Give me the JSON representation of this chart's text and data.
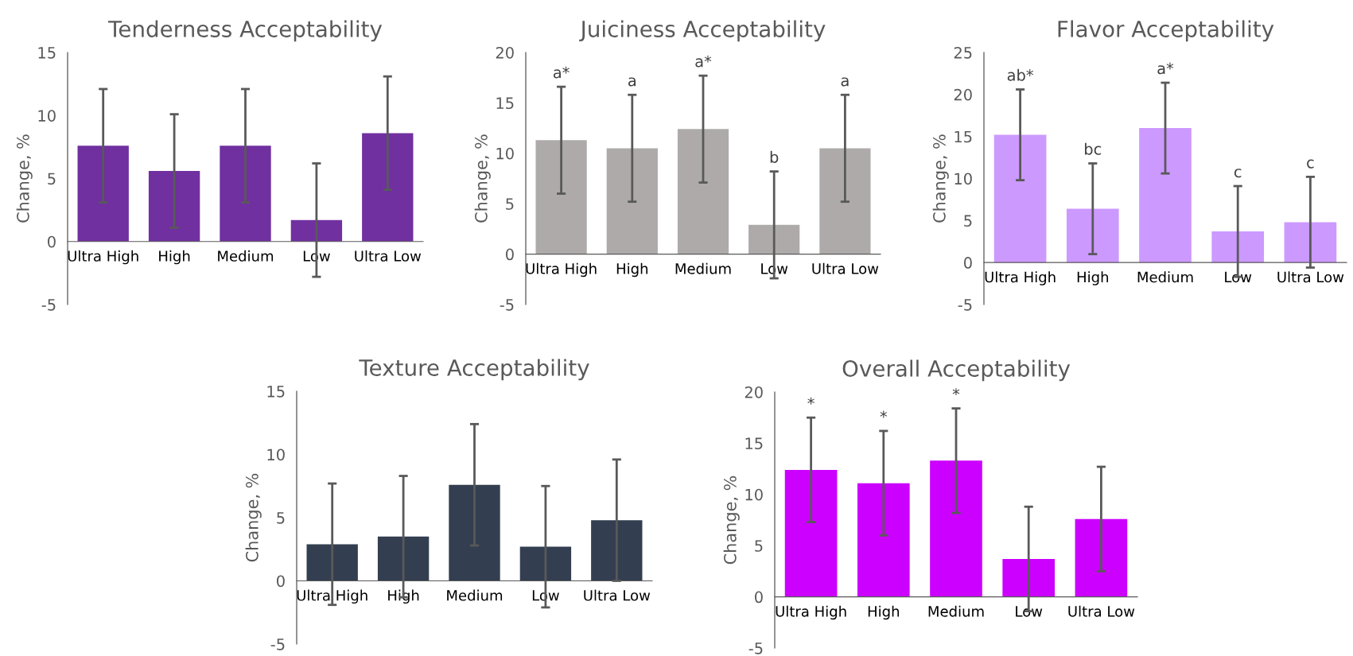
{
  "chart_data": [
    {
      "type": "bar",
      "title": "Tenderness Acceptability",
      "ylabel": "Change, %",
      "categories": [
        "Ultra High",
        "High",
        "Medium",
        "Low",
        "Ultra Low"
      ],
      "values": [
        7.6,
        5.6,
        7.6,
        1.7,
        8.6
      ],
      "errors": [
        4.5,
        4.5,
        4.5,
        4.5,
        4.5
      ],
      "color": "#7030a0",
      "ylim": [
        -5,
        15
      ],
      "yticks": [
        -5,
        0,
        5,
        10,
        15
      ]
    },
    {
      "type": "bar",
      "title": "Juiciness Acceptability",
      "ylabel": "Change, %",
      "categories": [
        "Ultra High",
        "High",
        "Medium",
        "Low",
        "Ultra Low"
      ],
      "values": [
        11.3,
        10.5,
        12.4,
        2.9,
        10.5
      ],
      "errors": [
        5.3,
        5.3,
        5.3,
        5.3,
        5.3
      ],
      "color": "#aeaaaa",
      "ylim": [
        -5,
        20
      ],
      "yticks": [
        -5,
        0,
        5,
        10,
        15,
        20
      ],
      "annotations": [
        {
          "text": "a*",
          "x": "Ultra High",
          "y": 16.6
        },
        {
          "text": "a",
          "x": "High",
          "y": 15.8
        },
        {
          "text": "a*",
          "x": "Medium",
          "y": 17.7
        },
        {
          "text": "b",
          "x": "Low",
          "y": 8.2
        },
        {
          "text": "a",
          "x": "Ultra Low",
          "y": 15.8
        }
      ]
    },
    {
      "type": "bar",
      "title": "Flavor Acceptability",
      "ylabel": "Change, %",
      "categories": [
        "Ultra High",
        "High",
        "Medium",
        "Low",
        "Ultra Low"
      ],
      "values": [
        15.2,
        6.4,
        16.0,
        3.7,
        4.8
      ],
      "errors": [
        5.4,
        5.4,
        5.4,
        5.4,
        5.4
      ],
      "color": "#cc99ff",
      "ylim": [
        -5,
        25
      ],
      "yticks": [
        -5,
        0,
        5,
        10,
        15,
        20,
        25
      ],
      "annotations": [
        {
          "text": "ab*",
          "x": "Ultra High",
          "y": 20.6
        },
        {
          "text": "bc",
          "x": "High",
          "y": 11.8
        },
        {
          "text": "a*",
          "x": "Medium",
          "y": 21.4
        },
        {
          "text": "c",
          "x": "Low",
          "y": 9.1
        },
        {
          "text": "c",
          "x": "Ultra Low",
          "y": 10.2
        }
      ]
    },
    {
      "type": "bar",
      "title": "Texture Acceptability",
      "ylabel": "Change, %",
      "categories": [
        "Ultra High",
        "High",
        "Medium",
        "Low",
        "Ultra Low"
      ],
      "values": [
        2.9,
        3.5,
        7.6,
        2.7,
        4.8
      ],
      "errors": [
        4.8,
        4.8,
        4.8,
        4.8,
        4.8
      ],
      "color": "#333f50",
      "ylim": [
        -5,
        15
      ],
      "yticks": [
        -5,
        0,
        5,
        10,
        15
      ]
    },
    {
      "type": "bar",
      "title": "Overall Acceptability",
      "ylabel": "Change, %",
      "categories": [
        "Ultra High",
        "High",
        "Medium",
        "Low",
        "Ultra Low"
      ],
      "values": [
        12.4,
        11.1,
        13.3,
        3.7,
        7.6
      ],
      "errors": [
        5.1,
        5.1,
        5.1,
        5.1,
        5.1
      ],
      "color": "#cc00ff",
      "ylim": [
        -5,
        20
      ],
      "yticks": [
        -5,
        0,
        5,
        10,
        15,
        20
      ],
      "annotations": [
        {
          "text": "*",
          "x": "Ultra High",
          "y": 17.5
        },
        {
          "text": "*",
          "x": "High",
          "y": 16.2
        },
        {
          "text": "*",
          "x": "Medium",
          "y": 18.4
        }
      ]
    }
  ]
}
